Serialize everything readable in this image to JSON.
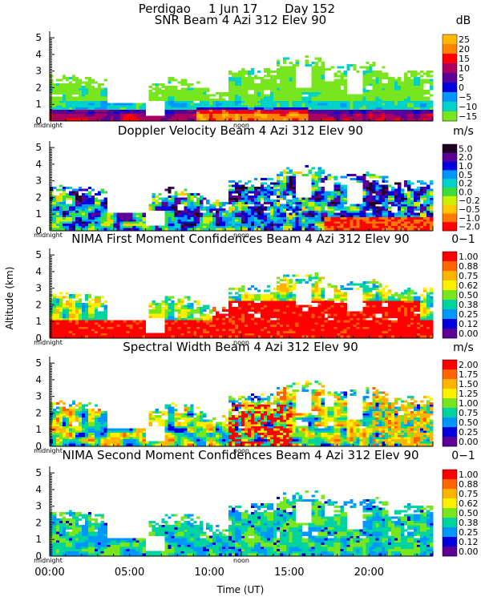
{
  "header": {
    "site": "Perdigao",
    "date": "1 Jun 17",
    "day": "Day 152"
  },
  "axes": {
    "ylabel": "Altitude (km)",
    "xlabel": "Time (UT)",
    "x_ticks": [
      "00:00",
      "05:00",
      "10:00",
      "15:00",
      "20:00"
    ],
    "x_tick_hours": [
      0,
      5,
      10,
      15,
      20
    ],
    "x_range_hours": [
      0,
      24
    ],
    "y_ticks": [
      "0",
      "1",
      "2",
      "3",
      "4",
      "5"
    ],
    "y_range_km": [
      0,
      5.2
    ],
    "midnight_label": "midnight",
    "noon_label": "noon"
  },
  "chart_data": [
    {
      "type": "heatmap",
      "title": "SNR Beam 4 Azi 312 Elev 90",
      "unit": "dB",
      "colorbar_labels": [
        "25",
        "20",
        "15",
        "10",
        "5",
        "0",
        "−5",
        "−10",
        "−15"
      ],
      "colors": [
        "#ffb900",
        "#ff8200",
        "#ff0000",
        "#aa0060",
        "#5a0096",
        "#0000dc",
        "#0096ff",
        "#00d2c8",
        "#78e61e"
      ],
      "field": "snr"
    },
    {
      "type": "heatmap",
      "title": "Doppler Velocity Beam 4 Azi 312 Elev 90",
      "unit": "m/s",
      "colorbar_labels": [
        "5.0",
        "2.0",
        "1.0",
        "0.5",
        "0.2",
        "0.0",
        "−0.2",
        "−0.5",
        "−1.0",
        "−2.0"
      ],
      "colors": [
        "#200020",
        "#5a0096",
        "#0000dc",
        "#0096ff",
        "#00d2c8",
        "#3cdc3c",
        "#c8f000",
        "#ffc800",
        "#ff7800",
        "#ff0000"
      ],
      "field": "velocity"
    },
    {
      "type": "heatmap",
      "title": "NIMA First Moment Confidences Beam 4 Azi 312 Elev 90",
      "unit": "0−1",
      "colorbar_labels": [
        "1.00",
        "0.88",
        "0.75",
        "0.62",
        "0.50",
        "0.38",
        "0.25",
        "0.12",
        "0.00"
      ],
      "colors": [
        "#ff0000",
        "#ff6400",
        "#ffb400",
        "#fff000",
        "#78e61e",
        "#00d2a0",
        "#0096ff",
        "#0000dc",
        "#5a0096"
      ],
      "field": "confidence1"
    },
    {
      "type": "heatmap",
      "title": "Spectral Width Beam 4 Azi 312 Elev 90",
      "unit": "m/s",
      "colorbar_labels": [
        "2.00",
        "1.75",
        "1.50",
        "1.25",
        "1.00",
        "0.75",
        "0.50",
        "0.25",
        "0.00"
      ],
      "colors": [
        "#ff0000",
        "#ff6400",
        "#ffb400",
        "#fff000",
        "#78e61e",
        "#00d2a0",
        "#0096ff",
        "#0000dc",
        "#5a0096"
      ],
      "field": "width"
    },
    {
      "type": "heatmap",
      "title": "NIMA Second Moment Confidences Beam 4 Azi 312 Elev 90",
      "unit": "0−1",
      "colorbar_labels": [
        "1.00",
        "0.88",
        "0.75",
        "0.62",
        "0.50",
        "0.38",
        "0.25",
        "0.12",
        "0.00"
      ],
      "colors": [
        "#ff0000",
        "#ff6400",
        "#ffb400",
        "#fff000",
        "#78e61e",
        "#00d2a0",
        "#0096ff",
        "#0000dc",
        "#5a0096"
      ],
      "field": "confidence2"
    }
  ]
}
